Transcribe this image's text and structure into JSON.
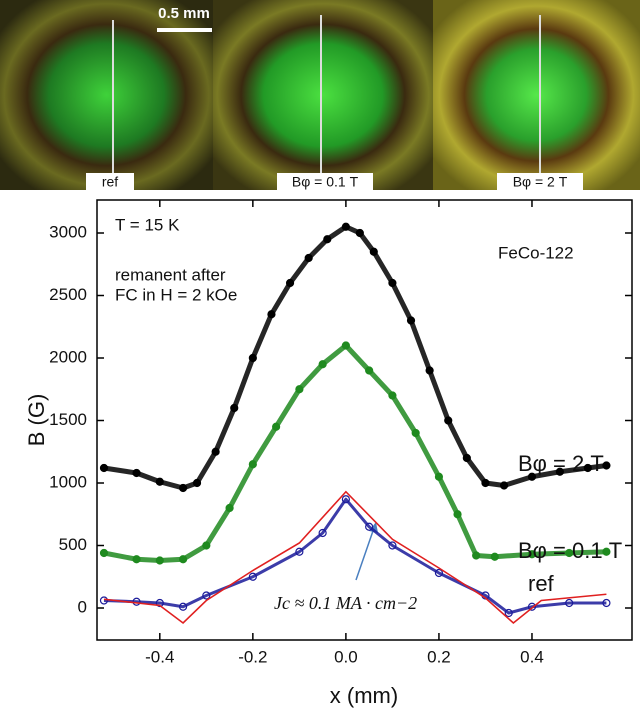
{
  "micrographs": {
    "scale_bar": "0.5 mm",
    "panels": [
      {
        "label": "ref"
      },
      {
        "label": "Bφ = 0.1 T"
      },
      {
        "label": "Bφ = 2 T"
      }
    ]
  },
  "chart_data": {
    "type": "scatter",
    "x_label": "x (mm)",
    "y_label": "B (G)",
    "xlim": [
      -0.535,
      0.615
    ],
    "ylim": [
      -256,
      3264
    ],
    "xticks": [
      -0.4,
      -0.2,
      {
        "value": 0,
        "label": "0.0"
      },
      0.2,
      0.4
    ],
    "yticks": [
      0,
      500,
      1000,
      1500,
      2000,
      2500,
      3000
    ],
    "annotations": [
      "T = 15 K",
      "remanent after",
      "FC in H = 2 kOe",
      "FeCo-122",
      "Jc ≈ 0.1 MA · cm−2"
    ],
    "series": [
      {
        "name": "Bφ = 2 T",
        "color": "#000000",
        "marker": "filled",
        "x": [
          -0.52,
          -0.45,
          -0.4,
          -0.35,
          -0.32,
          -0.28,
          -0.24,
          -0.2,
          -0.16,
          -0.12,
          -0.08,
          -0.04,
          0,
          0.03,
          0.06,
          0.1,
          0.14,
          0.18,
          0.22,
          0.26,
          0.3,
          0.34,
          0.4,
          0.46,
          0.52,
          0.56
        ],
        "values": [
          1120,
          1080,
          1010,
          960,
          1000,
          1250,
          1600,
          2000,
          2350,
          2600,
          2800,
          2950,
          3050,
          3000,
          2850,
          2600,
          2300,
          1900,
          1500,
          1200,
          1000,
          980,
          1050,
          1090,
          1120,
          1140
        ]
      },
      {
        "name": "Bφ = 0.1 T",
        "color": "#1f8a1f",
        "marker": "filled",
        "x": [
          -0.52,
          -0.45,
          -0.4,
          -0.35,
          -0.3,
          -0.25,
          -0.2,
          -0.15,
          -0.1,
          -0.05,
          0,
          0.05,
          0.1,
          0.15,
          0.2,
          0.24,
          0.28,
          0.32,
          0.4,
          0.48,
          0.56
        ],
        "values": [
          440,
          390,
          380,
          390,
          500,
          800,
          1150,
          1450,
          1750,
          1950,
          2100,
          1900,
          1700,
          1400,
          1050,
          750,
          420,
          410,
          430,
          440,
          450
        ]
      },
      {
        "name": "ref",
        "color": "#1a1a9a",
        "marker": "open",
        "x": [
          -0.52,
          -0.45,
          -0.4,
          -0.35,
          -0.3,
          -0.2,
          -0.1,
          -0.05,
          0,
          0.05,
          0.1,
          0.2,
          0.3,
          0.35,
          0.4,
          0.48,
          0.56
        ],
        "values": [
          60,
          50,
          40,
          10,
          100,
          250,
          450,
          600,
          870,
          650,
          500,
          280,
          100,
          -40,
          10,
          40,
          40
        ]
      },
      {
        "color": "#e02020",
        "marker": "line",
        "x": [
          -0.52,
          -0.4,
          -0.35,
          -0.3,
          -0.2,
          -0.1,
          0,
          0.1,
          0.2,
          0.3,
          0.36,
          0.42,
          0.56
        ],
        "values": [
          70,
          20,
          -120,
          60,
          300,
          520,
          930,
          550,
          320,
          80,
          -120,
          60,
          110
        ]
      }
    ]
  }
}
